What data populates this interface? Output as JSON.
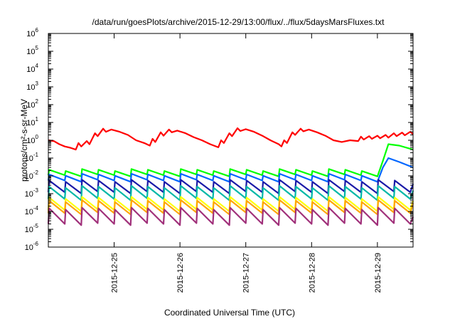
{
  "chart_data": {
    "type": "line",
    "title": "/data/run/goesPlots/archive/2015-12-29/13:00/flux/../flux/5daysMarsFluxes.txt",
    "xlabel": "Coordinated Universal Time (UTC)",
    "ylabel": "protons/cm²-s-sr-MeV",
    "yscale": "log",
    "ylim": [
      1e-06,
      1000000.0
    ],
    "xlim": [
      "2015-12-24 00:00",
      "2015-12-29 13:00"
    ],
    "x_ticks": [
      "2015-12-25",
      "2015-12-26",
      "2015-12-27",
      "2015-12-28",
      "2015-12-29"
    ],
    "y_ticks": [
      {
        "value": 1e-06,
        "base": "10",
        "exp": "-6"
      },
      {
        "value": 1e-05,
        "base": "10",
        "exp": "-5"
      },
      {
        "value": 0.0001,
        "base": "10",
        "exp": "-4"
      },
      {
        "value": 0.001,
        "base": "10",
        "exp": "-3"
      },
      {
        "value": 0.01,
        "base": "10",
        "exp": "-2"
      },
      {
        "value": 0.1,
        "base": "10",
        "exp": "-1"
      },
      {
        "value": 1,
        "base": "10",
        "exp": "0"
      },
      {
        "value": 10,
        "base": "10",
        "exp": "1"
      },
      {
        "value": 100,
        "base": "10",
        "exp": "2"
      },
      {
        "value": 1000,
        "base": "10",
        "exp": "3"
      },
      {
        "value": 10000,
        "base": "10",
        "exp": "4"
      },
      {
        "value": 100000,
        "base": "10",
        "exp": "5"
      },
      {
        "value": 1000000,
        "base": "10",
        "exp": "6"
      }
    ],
    "grid": false,
    "legend": "none",
    "series": [
      {
        "color": "#ff0000",
        "points": [
          [
            "2015-12-24 00:00",
            1.0
          ],
          [
            "2015-12-24 02:00",
            0.9
          ],
          [
            "2015-12-24 04:00",
            0.6
          ],
          [
            "2015-12-24 06:00",
            0.45
          ],
          [
            "2015-12-24 08:00",
            0.38
          ],
          [
            "2015-12-24 10:00",
            0.3
          ],
          [
            "2015-12-24 11:00",
            0.7
          ],
          [
            "2015-12-24 12:00",
            0.45
          ],
          [
            "2015-12-24 14:00",
            0.9
          ],
          [
            "2015-12-24 15:00",
            0.6
          ],
          [
            "2015-12-24 17:00",
            2.5
          ],
          [
            "2015-12-24 18:00",
            1.7
          ],
          [
            "2015-12-24 20:00",
            4.5
          ],
          [
            "2015-12-24 21:00",
            3.0
          ],
          [
            "2015-12-24 23:00",
            4.0
          ],
          [
            "2015-12-25 02:00",
            3.0
          ],
          [
            "2015-12-25 05:00",
            2.0
          ],
          [
            "2015-12-25 08:00",
            1.0
          ],
          [
            "2015-12-25 11:00",
            0.7
          ],
          [
            "2015-12-25 13:00",
            0.5
          ],
          [
            "2015-12-25 14:00",
            1.2
          ],
          [
            "2015-12-25 15:00",
            0.8
          ],
          [
            "2015-12-25 17:00",
            2.8
          ],
          [
            "2015-12-25 18:00",
            1.8
          ],
          [
            "2015-12-25 20:00",
            4.0
          ],
          [
            "2015-12-25 21:00",
            2.8
          ],
          [
            "2015-12-25 23:00",
            3.5
          ],
          [
            "2015-12-26 02:00",
            2.5
          ],
          [
            "2015-12-26 05:00",
            1.5
          ],
          [
            "2015-12-26 08:00",
            1.0
          ],
          [
            "2015-12-26 11:00",
            0.6
          ],
          [
            "2015-12-26 14:00",
            0.4
          ],
          [
            "2015-12-26 15:00",
            1.0
          ],
          [
            "2015-12-26 16:00",
            0.7
          ],
          [
            "2015-12-26 18:00",
            2.5
          ],
          [
            "2015-12-26 19:00",
            1.7
          ],
          [
            "2015-12-26 21:00",
            4.8
          ],
          [
            "2015-12-26 22:00",
            3.3
          ],
          [
            "2015-12-27 00:00",
            4.2
          ],
          [
            "2015-12-27 03:00",
            3.0
          ],
          [
            "2015-12-27 06:00",
            1.8
          ],
          [
            "2015-12-27 09:00",
            1.0
          ],
          [
            "2015-12-27 12:00",
            0.6
          ],
          [
            "2015-12-27 13:00",
            0.45
          ],
          [
            "2015-12-27 14:00",
            1.0
          ],
          [
            "2015-12-27 15:00",
            0.7
          ],
          [
            "2015-12-27 17:00",
            2.8
          ],
          [
            "2015-12-27 18:00",
            2.0
          ],
          [
            "2015-12-27 20:00",
            4.5
          ],
          [
            "2015-12-27 21:00",
            3.2
          ],
          [
            "2015-12-27 23:00",
            4.0
          ],
          [
            "2015-12-28 02:00",
            2.8
          ],
          [
            "2015-12-28 05:00",
            1.8
          ],
          [
            "2015-12-28 08:00",
            1.0
          ],
          [
            "2015-12-28 11:00",
            0.8
          ],
          [
            "2015-12-28 14:00",
            1.0
          ],
          [
            "2015-12-28 17:00",
            0.9
          ],
          [
            "2015-12-28 18:00",
            1.6
          ],
          [
            "2015-12-28 19:00",
            1.1
          ],
          [
            "2015-12-28 21:00",
            1.7
          ],
          [
            "2015-12-28 22:00",
            1.2
          ],
          [
            "2015-12-29 00:00",
            1.8
          ],
          [
            "2015-12-29 01:00",
            1.3
          ],
          [
            "2015-12-29 03:00",
            2.0
          ],
          [
            "2015-12-29 04:00",
            1.4
          ],
          [
            "2015-12-29 06:00",
            2.5
          ],
          [
            "2015-12-29 07:00",
            1.7
          ],
          [
            "2015-12-29 09:00",
            2.7
          ],
          [
            "2015-12-29 10:00",
            1.9
          ],
          [
            "2015-12-29 12:00",
            3.0
          ],
          [
            "2015-12-29 13:00",
            2.2
          ]
        ]
      },
      {
        "color": "#00ff00",
        "sawtooth": {
          "hi": 0.022,
          "lo": 0.011
        },
        "rise": [
          [
            "2015-12-29 02:00",
            0.07
          ],
          [
            "2015-12-29 04:00",
            0.6
          ],
          [
            "2015-12-29 08:00",
            0.5
          ],
          [
            "2015-12-29 13:00",
            0.3
          ]
        ]
      },
      {
        "color": "#0066ff",
        "sawtooth": {
          "hi": 0.012,
          "lo": 0.0055
        },
        "rise": [
          [
            "2015-12-29 02:00",
            0.03
          ],
          [
            "2015-12-29 04:00",
            0.1
          ],
          [
            "2015-12-29 08:00",
            0.06
          ],
          [
            "2015-12-29 13:00",
            0.03
          ]
        ]
      },
      {
        "color": "#1a1aa8",
        "sawtooth": {
          "hi": 0.0055,
          "lo": 0.0012
        },
        "rise": [
          [
            "2015-12-29 13:00",
            0.0035
          ]
        ]
      },
      {
        "color": "#00b8a8",
        "sawtooth": {
          "hi": 0.0025,
          "lo": 0.0005
        },
        "rise": [
          [
            "2015-12-29 13:00",
            0.0015
          ]
        ]
      },
      {
        "color": "#ffff00",
        "sawtooth": {
          "hi": 0.0006,
          "lo": 0.00012
        },
        "rise": [
          [
            "2015-12-29 13:00",
            0.0004
          ]
        ]
      },
      {
        "color": "#ffa500",
        "sawtooth": {
          "hi": 0.0004,
          "lo": 8e-05
        },
        "rise": [
          [
            "2015-12-29 13:00",
            0.0003
          ]
        ]
      },
      {
        "color": "#a0307a",
        "sawtooth": {
          "hi": 0.00015,
          "lo": 2e-05
        },
        "rise": [
          [
            "2015-12-29 13:00",
            5e-05
          ]
        ]
      }
    ]
  }
}
